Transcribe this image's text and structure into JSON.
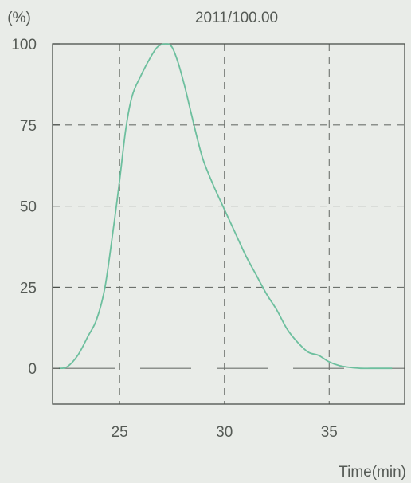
{
  "chart_data": {
    "type": "line",
    "title": "2011/100.00",
    "ylabel": "(%)",
    "xlabel": "Time(min)",
    "xlim": [
      21.8,
      38.6
    ],
    "ylim": [
      -11,
      100
    ],
    "x_ticks": [
      {
        "value": 25,
        "label": "25"
      },
      {
        "value": 30,
        "label": "30"
      },
      {
        "value": 35,
        "label": "35"
      }
    ],
    "y_ticks": [
      {
        "value": 0,
        "label": "0"
      },
      {
        "value": 25,
        "label": "25"
      },
      {
        "value": 50,
        "label": "50"
      },
      {
        "value": 75,
        "label": "75"
      },
      {
        "value": 100,
        "label": "100"
      }
    ],
    "grid": true,
    "legend": "none",
    "colors": {
      "line": "#6dbf9e",
      "axis": "#4a4f4a",
      "grid": "#6d726d",
      "text": "#555a55",
      "background": "#e9ece8"
    },
    "series": [
      {
        "x": [
          22.1,
          22.5,
          23.0,
          23.5,
          23.9,
          24.3,
          24.7,
          25.0,
          25.3,
          25.6,
          26.0,
          26.4,
          26.8,
          27.2,
          27.5,
          27.8,
          28.1,
          28.4,
          28.7,
          29.0,
          29.5,
          30.0,
          30.5,
          31.0,
          31.5,
          32.0,
          32.5,
          33.0,
          33.5,
          34.0,
          34.5,
          35.0,
          35.5,
          36.0,
          36.5,
          37.0,
          37.5,
          38.0
        ],
        "y": [
          0,
          0.5,
          4,
          10,
          15,
          25,
          43,
          58,
          74,
          84,
          90,
          95,
          99,
          100,
          99,
          94,
          87,
          79,
          71,
          64,
          56,
          49,
          42,
          35,
          29,
          23,
          18,
          12,
          8,
          5,
          4,
          2,
          0.8,
          0.3,
          0,
          0,
          0,
          0
        ]
      }
    ]
  }
}
